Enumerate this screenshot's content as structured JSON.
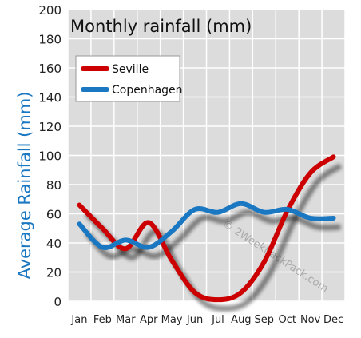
{
  "chart_data": {
    "type": "line",
    "title": "Monthly rainfall (mm)",
    "xlabel": "",
    "ylabel": "Average Rainfall (mm)",
    "categories": [
      "Jan",
      "Feb",
      "Mar",
      "Apr",
      "May",
      "Jun",
      "Jul",
      "Aug",
      "Sep",
      "Oct",
      "Nov",
      "Dec"
    ],
    "ylim": [
      0,
      200
    ],
    "yticks": [
      0,
      20,
      40,
      60,
      80,
      100,
      120,
      140,
      160,
      180,
      200
    ],
    "grid": true,
    "legend_position": "top-left",
    "series": [
      {
        "name": "Seville",
        "color": "#cc0000",
        "values": [
          66,
          50,
          36,
          54,
          28,
          6,
          1,
          6,
          27,
          62,
          88,
          99
        ]
      },
      {
        "name": "Copenhagen",
        "color": "#1a78c2",
        "values": [
          53,
          37,
          42,
          37,
          48,
          63,
          61,
          67,
          61,
          63,
          57,
          57
        ]
      }
    ],
    "watermark": "© 2WeekBackPack.com"
  },
  "colors": {
    "plot_background": "#dcdcdc",
    "grid": "#ffffff",
    "ylabel": "#1a78c2",
    "axis_text": "#222222"
  }
}
